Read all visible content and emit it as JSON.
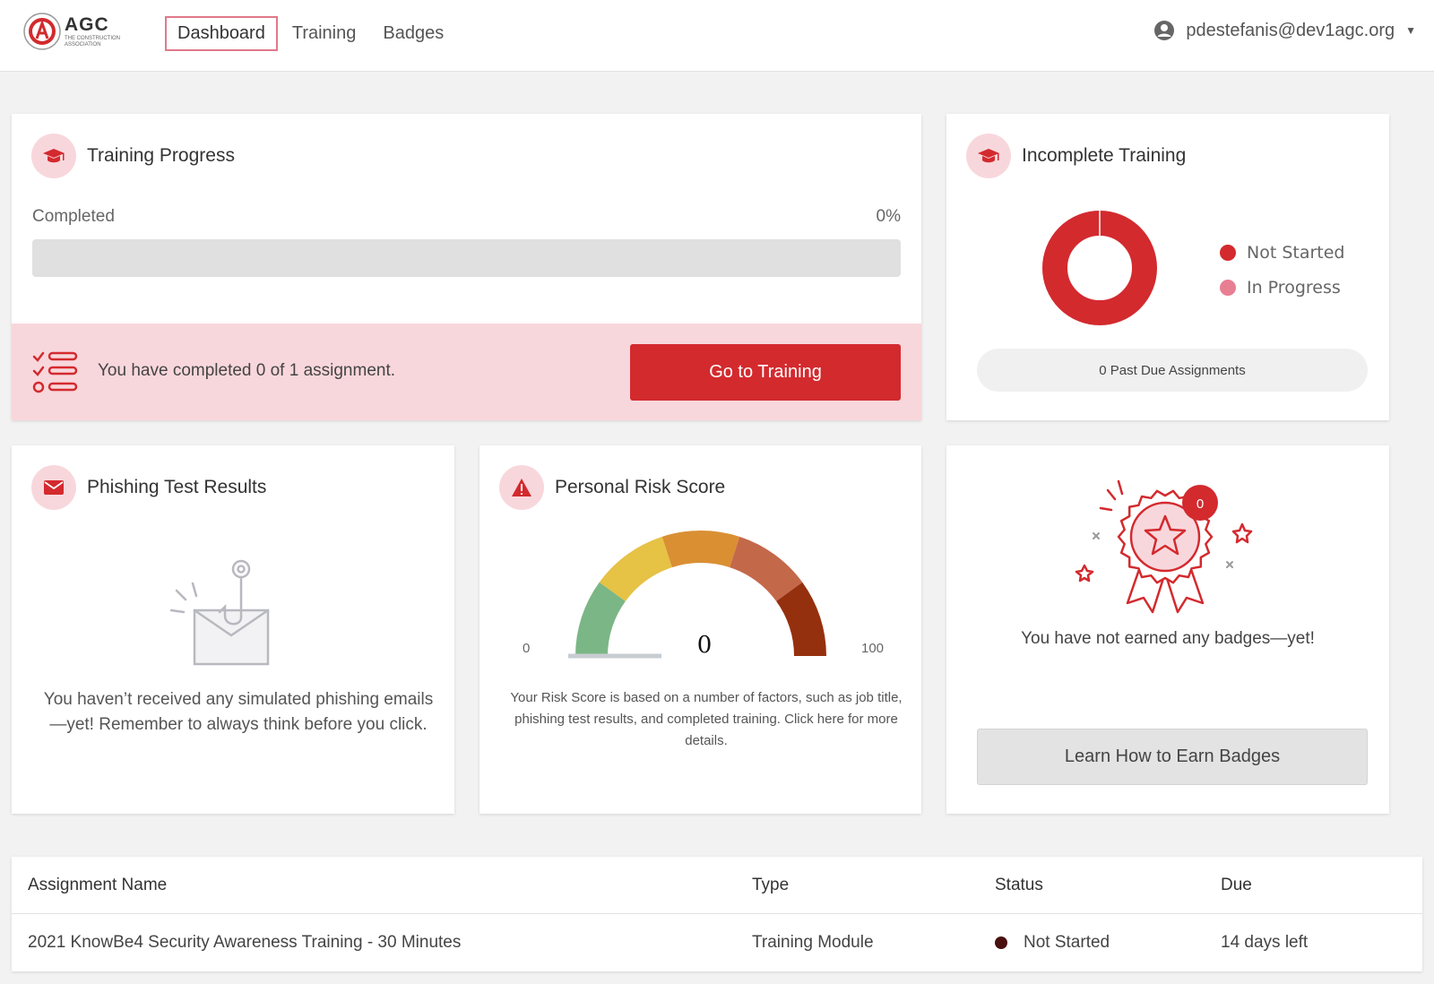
{
  "header": {
    "logo_text": "AGC",
    "logo_subtitle": "THE CONSTRUCTION ASSOCIATION",
    "nav": [
      {
        "label": "Dashboard",
        "active": true
      },
      {
        "label": "Training",
        "active": false
      },
      {
        "label": "Badges",
        "active": false
      }
    ],
    "user_email": "pdestefanis@dev1agc.org"
  },
  "training_progress": {
    "title": "Training Progress",
    "completed_label": "Completed",
    "percent_label": "0%",
    "percent": 0,
    "assignment_text": "You have completed 0 of 1 assignment.",
    "button_label": "Go to Training"
  },
  "incomplete_training": {
    "title": "Incomplete Training",
    "legend": [
      {
        "label": "Not Started",
        "color": "#d32a2e"
      },
      {
        "label": "In Progress",
        "color": "#e87e92"
      }
    ],
    "past_due_text": "0 Past Due Assignments"
  },
  "phishing": {
    "title": "Phishing Test Results",
    "message": "You haven’t received any simulated phishing emails—yet! Remember to always think before you click."
  },
  "risk": {
    "title": "Personal Risk Score",
    "min_label": "0",
    "max_label": "100",
    "score": "0",
    "description": "Your Risk Score is based on a number of factors, such as job title, phishing test results, and completed training. Click here for more details."
  },
  "badges": {
    "count": "0",
    "message": "You have not earned any badges—yet!",
    "button_label": "Learn How to Earn Badges"
  },
  "assignments": {
    "columns": [
      "Assignment Name",
      "Type",
      "Status",
      "Due"
    ],
    "rows": [
      {
        "name": "2021 KnowBe4 Security Awareness Training - 30 Minutes",
        "type": "Training Module",
        "status": "Not Started",
        "due": "14 days left"
      }
    ]
  },
  "colors": {
    "accent": "#d32a2e",
    "accent_light": "#f8d7dc"
  }
}
